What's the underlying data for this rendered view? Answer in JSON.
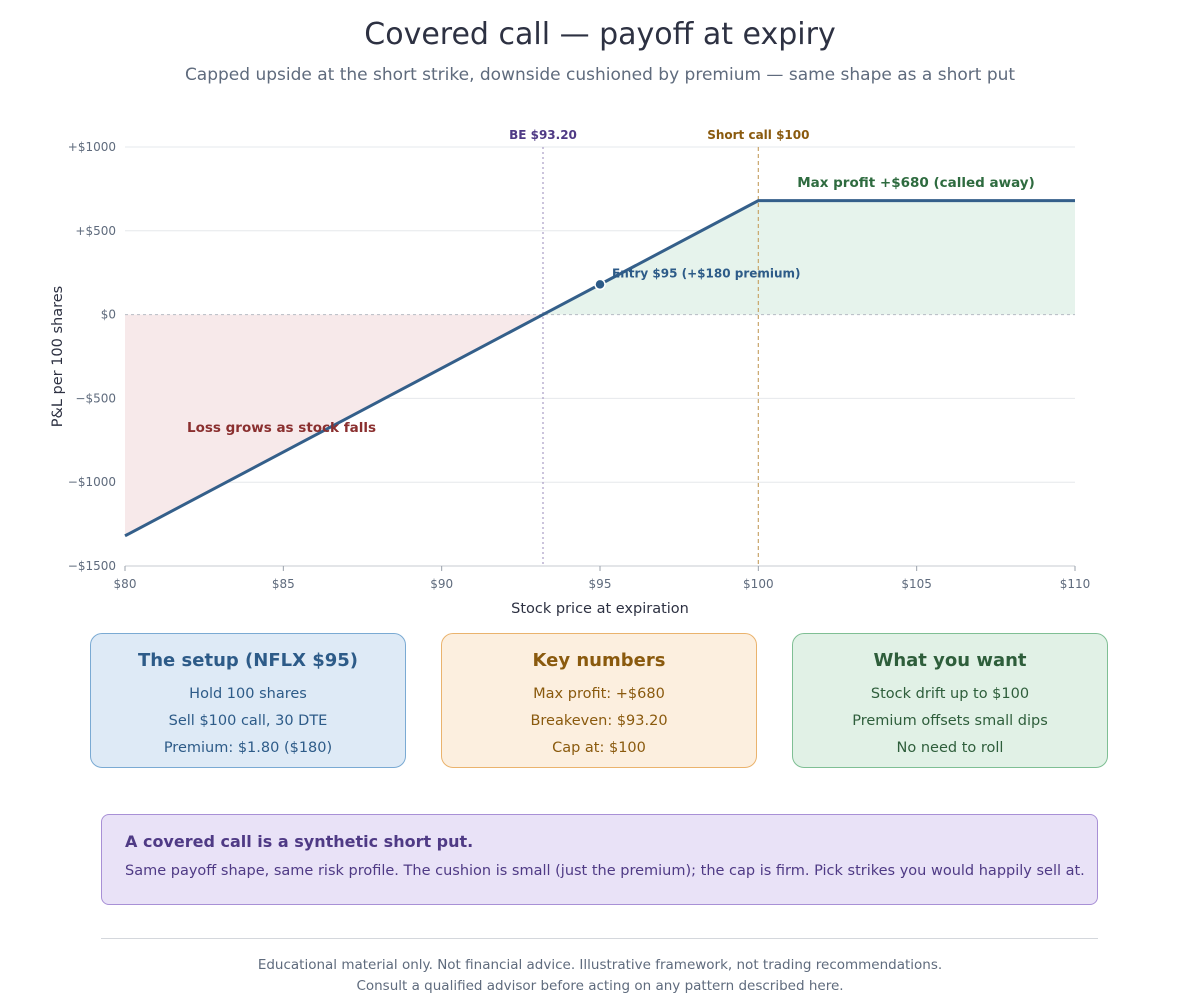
{
  "header": {
    "title": "Covered call — payoff at expiry",
    "subtitle": "Capped upside at the short strike, downside cushioned by premium — same shape as a short put"
  },
  "chart_data": {
    "type": "line",
    "title": "Covered call — payoff at expiry",
    "xlabel": "Stock price at expiration",
    "ylabel": "P&L per 100 shares",
    "xlim": [
      80,
      110
    ],
    "ylim": [
      -1500,
      1000
    ],
    "x_ticks": [
      80,
      85,
      90,
      95,
      100,
      105,
      110
    ],
    "x_tick_labels": [
      "$80",
      "$85",
      "$90",
      "$95",
      "$100",
      "$105",
      "$110"
    ],
    "y_ticks": [
      1000,
      500,
      0,
      -500,
      -1000,
      -1500
    ],
    "y_tick_labels": [
      "+$1000",
      "+$500",
      "$0",
      "−$500",
      "−$1000",
      "−$1500"
    ],
    "grid": "horizontal",
    "series": [
      {
        "x": [
          80,
          93.2,
          100,
          110
        ],
        "y": [
          -1320,
          0,
          680,
          680
        ],
        "color": "#345f8a"
      }
    ],
    "entry_point": {
      "x": 95,
      "y": 180,
      "label": "Entry $95 (+$180 premium)"
    },
    "vlines": [
      {
        "x": 93.2,
        "label": "BE $93.20",
        "color": "#4f3a85"
      },
      {
        "x": 100,
        "label": "Short call $100",
        "color": "#8a5a0e"
      }
    ],
    "annotations": [
      {
        "text": "Max profit +$680 (called away)",
        "color": "#2e6b3f"
      },
      {
        "text": "Loss grows as stock falls",
        "color": "#8a2f2f"
      }
    ],
    "colors": {
      "line": "#345f8a",
      "profit_fill": "#e6f3ec",
      "loss_fill": "#f7e9ea"
    }
  },
  "cards": [
    {
      "title": "The setup (NFLX $95)",
      "lines": [
        "Hold 100 shares",
        "Sell $100 call, 30 DTE",
        "Premium: $1.80 ($180)"
      ]
    },
    {
      "title": "Key numbers",
      "lines": [
        "Max profit: +$680",
        "Breakeven: $93.20",
        "Cap at: $100"
      ]
    },
    {
      "title": "What you want",
      "lines": [
        "Stock drift up to $100",
        "Premium offsets small dips",
        "No need to roll"
      ]
    }
  ],
  "callout": {
    "title": "A covered call is a synthetic short put.",
    "body": "Same payoff shape, same risk profile. The cushion is small (just the premium); the cap is firm. Pick strikes you would happily sell at."
  },
  "footer": {
    "line1": "Educational material only. Not financial advice. Illustrative framework, not trading recommendations.",
    "line2": "Consult a qualified advisor before acting on any pattern described here."
  }
}
